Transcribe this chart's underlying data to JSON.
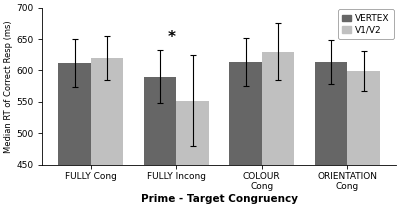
{
  "categories": [
    "FULLY Cong",
    "FULLY Incong",
    "COLOUR\nCong",
    "ORIENTATION\nCong"
  ],
  "vertex_values": [
    612,
    590,
    613,
    613
  ],
  "v1v2_values": [
    620,
    552,
    630,
    599
  ],
  "vertex_errors": [
    38,
    42,
    38,
    35
  ],
  "v1v2_errors": [
    35,
    72,
    45,
    32
  ],
  "vertex_color": "#666666",
  "v1v2_color": "#c0c0c0",
  "ylabel": "Median RT of Correct Resp (ms)",
  "xlabel": "Prime - Target Congruency",
  "ylim": [
    450,
    700
  ],
  "yticks": [
    450,
    500,
    550,
    600,
    650,
    700
  ],
  "bar_width": 0.38,
  "significance_label": "*",
  "significance_group": 1,
  "legend_labels": [
    "VERTEX",
    "V1/V2"
  ]
}
